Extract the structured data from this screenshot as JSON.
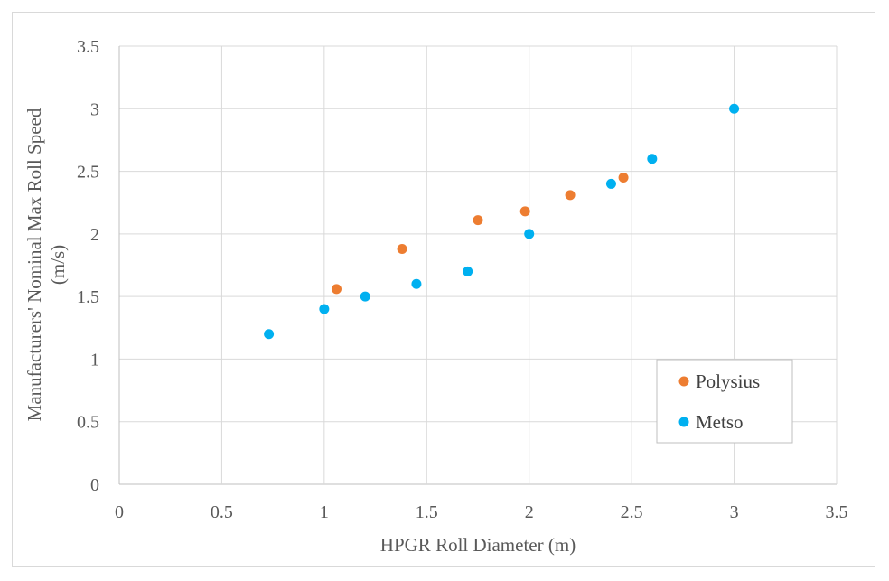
{
  "chart_data": {
    "type": "scatter",
    "xlabel": "HPGR Roll Diameter (m)",
    "ylabel_lines": [
      "Manufacturers' Nominal Max Roll Speed",
      "(m/s)"
    ],
    "xlim": [
      0,
      3.5
    ],
    "ylim": [
      0,
      3.5
    ],
    "xticks": [
      0,
      0.5,
      1,
      1.5,
      2,
      2.5,
      3,
      3.5
    ],
    "yticks": [
      0,
      0.5,
      1,
      1.5,
      2,
      2.5,
      3,
      3.5
    ],
    "xtick_labels": [
      "0",
      "0.5",
      "1",
      "1.5",
      "2",
      "2.5",
      "3",
      "3.5"
    ],
    "ytick_labels": [
      "0",
      "0.5",
      "1",
      "1.5",
      "2",
      "2.5",
      "3",
      "3.5"
    ],
    "grid": true,
    "legend_position": "bottom-right",
    "series": [
      {
        "name": "Polysius",
        "color": "#ed7d31",
        "points": [
          {
            "x": 1.06,
            "y": 1.56
          },
          {
            "x": 1.38,
            "y": 1.88
          },
          {
            "x": 1.75,
            "y": 2.11
          },
          {
            "x": 1.98,
            "y": 2.18
          },
          {
            "x": 2.2,
            "y": 2.31
          },
          {
            "x": 2.46,
            "y": 2.45
          }
        ]
      },
      {
        "name": "Metso",
        "color": "#00b0f0",
        "points": [
          {
            "x": 0.73,
            "y": 1.2
          },
          {
            "x": 1.0,
            "y": 1.4
          },
          {
            "x": 1.2,
            "y": 1.5
          },
          {
            "x": 1.45,
            "y": 1.6
          },
          {
            "x": 1.7,
            "y": 1.7
          },
          {
            "x": 2.0,
            "y": 2.0
          },
          {
            "x": 2.4,
            "y": 2.4
          },
          {
            "x": 2.6,
            "y": 2.6
          },
          {
            "x": 3.0,
            "y": 3.0
          }
        ]
      }
    ]
  }
}
